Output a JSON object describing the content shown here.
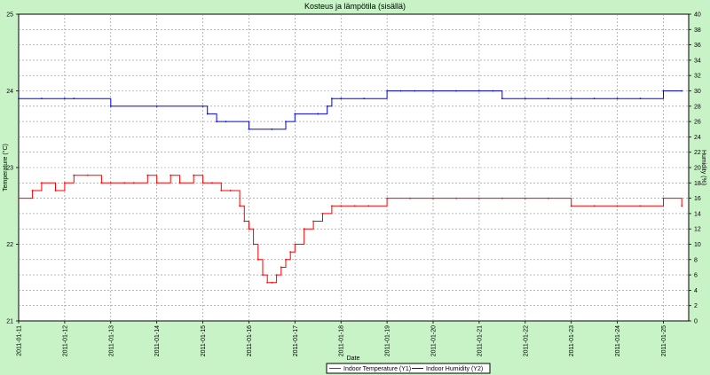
{
  "chart_data": {
    "type": "line",
    "title": "Kosteus ja lämpötila (sisällä)",
    "xlabel": "Date",
    "ylabel_left": "Temperature (°C)",
    "ylabel_right": "Humidity (%)",
    "y1_range": [
      21,
      25
    ],
    "y2_range": [
      0,
      40
    ],
    "y1_ticks": [
      "21",
      "22",
      "23",
      "24",
      "25"
    ],
    "y2_ticks": [
      "0",
      "2",
      "4",
      "6",
      "8",
      "10",
      "12",
      "14",
      "16",
      "18",
      "20",
      "22",
      "24",
      "26",
      "28",
      "30",
      "32",
      "34",
      "36",
      "38",
      "40"
    ],
    "x_ticks": [
      "2011-01-11",
      "2011-01-12",
      "2011-01-13",
      "2011-01-14",
      "2011-01-15",
      "2011-01-16",
      "2011-01-17",
      "2011-01-18",
      "2011-01-19",
      "2011-01-20",
      "2011-01-21",
      "2011-01-22",
      "2011-01-23",
      "2011-01-24",
      "2011-01-25"
    ],
    "x_range_days": [
      0,
      14.55
    ],
    "grid": true,
    "legend_position": "bottom-center",
    "series": [
      {
        "name": "Indoor Temperature (Y1)",
        "axis": "left",
        "color": "#ff0000",
        "x": [
          0,
          0.3,
          0.5,
          0.8,
          1.0,
          1.2,
          1.5,
          1.8,
          2.0,
          2.3,
          2.5,
          2.8,
          3.0,
          3.3,
          3.5,
          3.8,
          4.0,
          4.2,
          4.4,
          4.6,
          4.8,
          4.9,
          5.0,
          5.1,
          5.2,
          5.3,
          5.4,
          5.5,
          5.6,
          5.7,
          5.8,
          5.9,
          6.0,
          6.2,
          6.4,
          6.6,
          6.8,
          7.0,
          7.3,
          7.6,
          8.0,
          8.5,
          9.0,
          9.5,
          10.0,
          10.5,
          11.0,
          11.5,
          12.0,
          12.5,
          13.0,
          13.5,
          14.0,
          14.4
        ],
        "y": [
          22.6,
          22.7,
          22.8,
          22.7,
          22.8,
          22.9,
          22.9,
          22.8,
          22.8,
          22.8,
          22.8,
          22.9,
          22.8,
          22.9,
          22.8,
          22.9,
          22.8,
          22.8,
          22.7,
          22.7,
          22.5,
          22.3,
          22.2,
          22.0,
          21.8,
          21.6,
          21.5,
          21.5,
          21.6,
          21.7,
          21.8,
          21.9,
          22.0,
          22.2,
          22.3,
          22.4,
          22.5,
          22.5,
          22.5,
          22.5,
          22.6,
          22.6,
          22.6,
          22.6,
          22.6,
          22.6,
          22.6,
          22.6,
          22.5,
          22.5,
          22.5,
          22.5,
          22.6,
          22.5
        ]
      },
      {
        "name": "Indoor Humidity (Y2)",
        "axis": "right",
        "color": "#0000ff",
        "x": [
          0,
          0.5,
          1.0,
          1.2,
          2.0,
          3.0,
          4.0,
          4.1,
          4.3,
          4.5,
          5.0,
          5.5,
          5.8,
          6.0,
          6.5,
          6.7,
          6.8,
          7.0,
          7.5,
          8.0,
          8.3,
          8.6,
          9.0,
          9.5,
          10.0,
          10.3,
          10.5,
          11.0,
          11.5,
          12.0,
          12.5,
          13.0,
          13.5,
          14.0,
          14.4
        ],
        "y": [
          29,
          29,
          29,
          29,
          28,
          28,
          28,
          27,
          26,
          26,
          25,
          25,
          26,
          27,
          27,
          28,
          29,
          29,
          29,
          30,
          30,
          30,
          30,
          30,
          30,
          30,
          29,
          29,
          29,
          29,
          29,
          29,
          29,
          30,
          30
        ]
      }
    ]
  }
}
